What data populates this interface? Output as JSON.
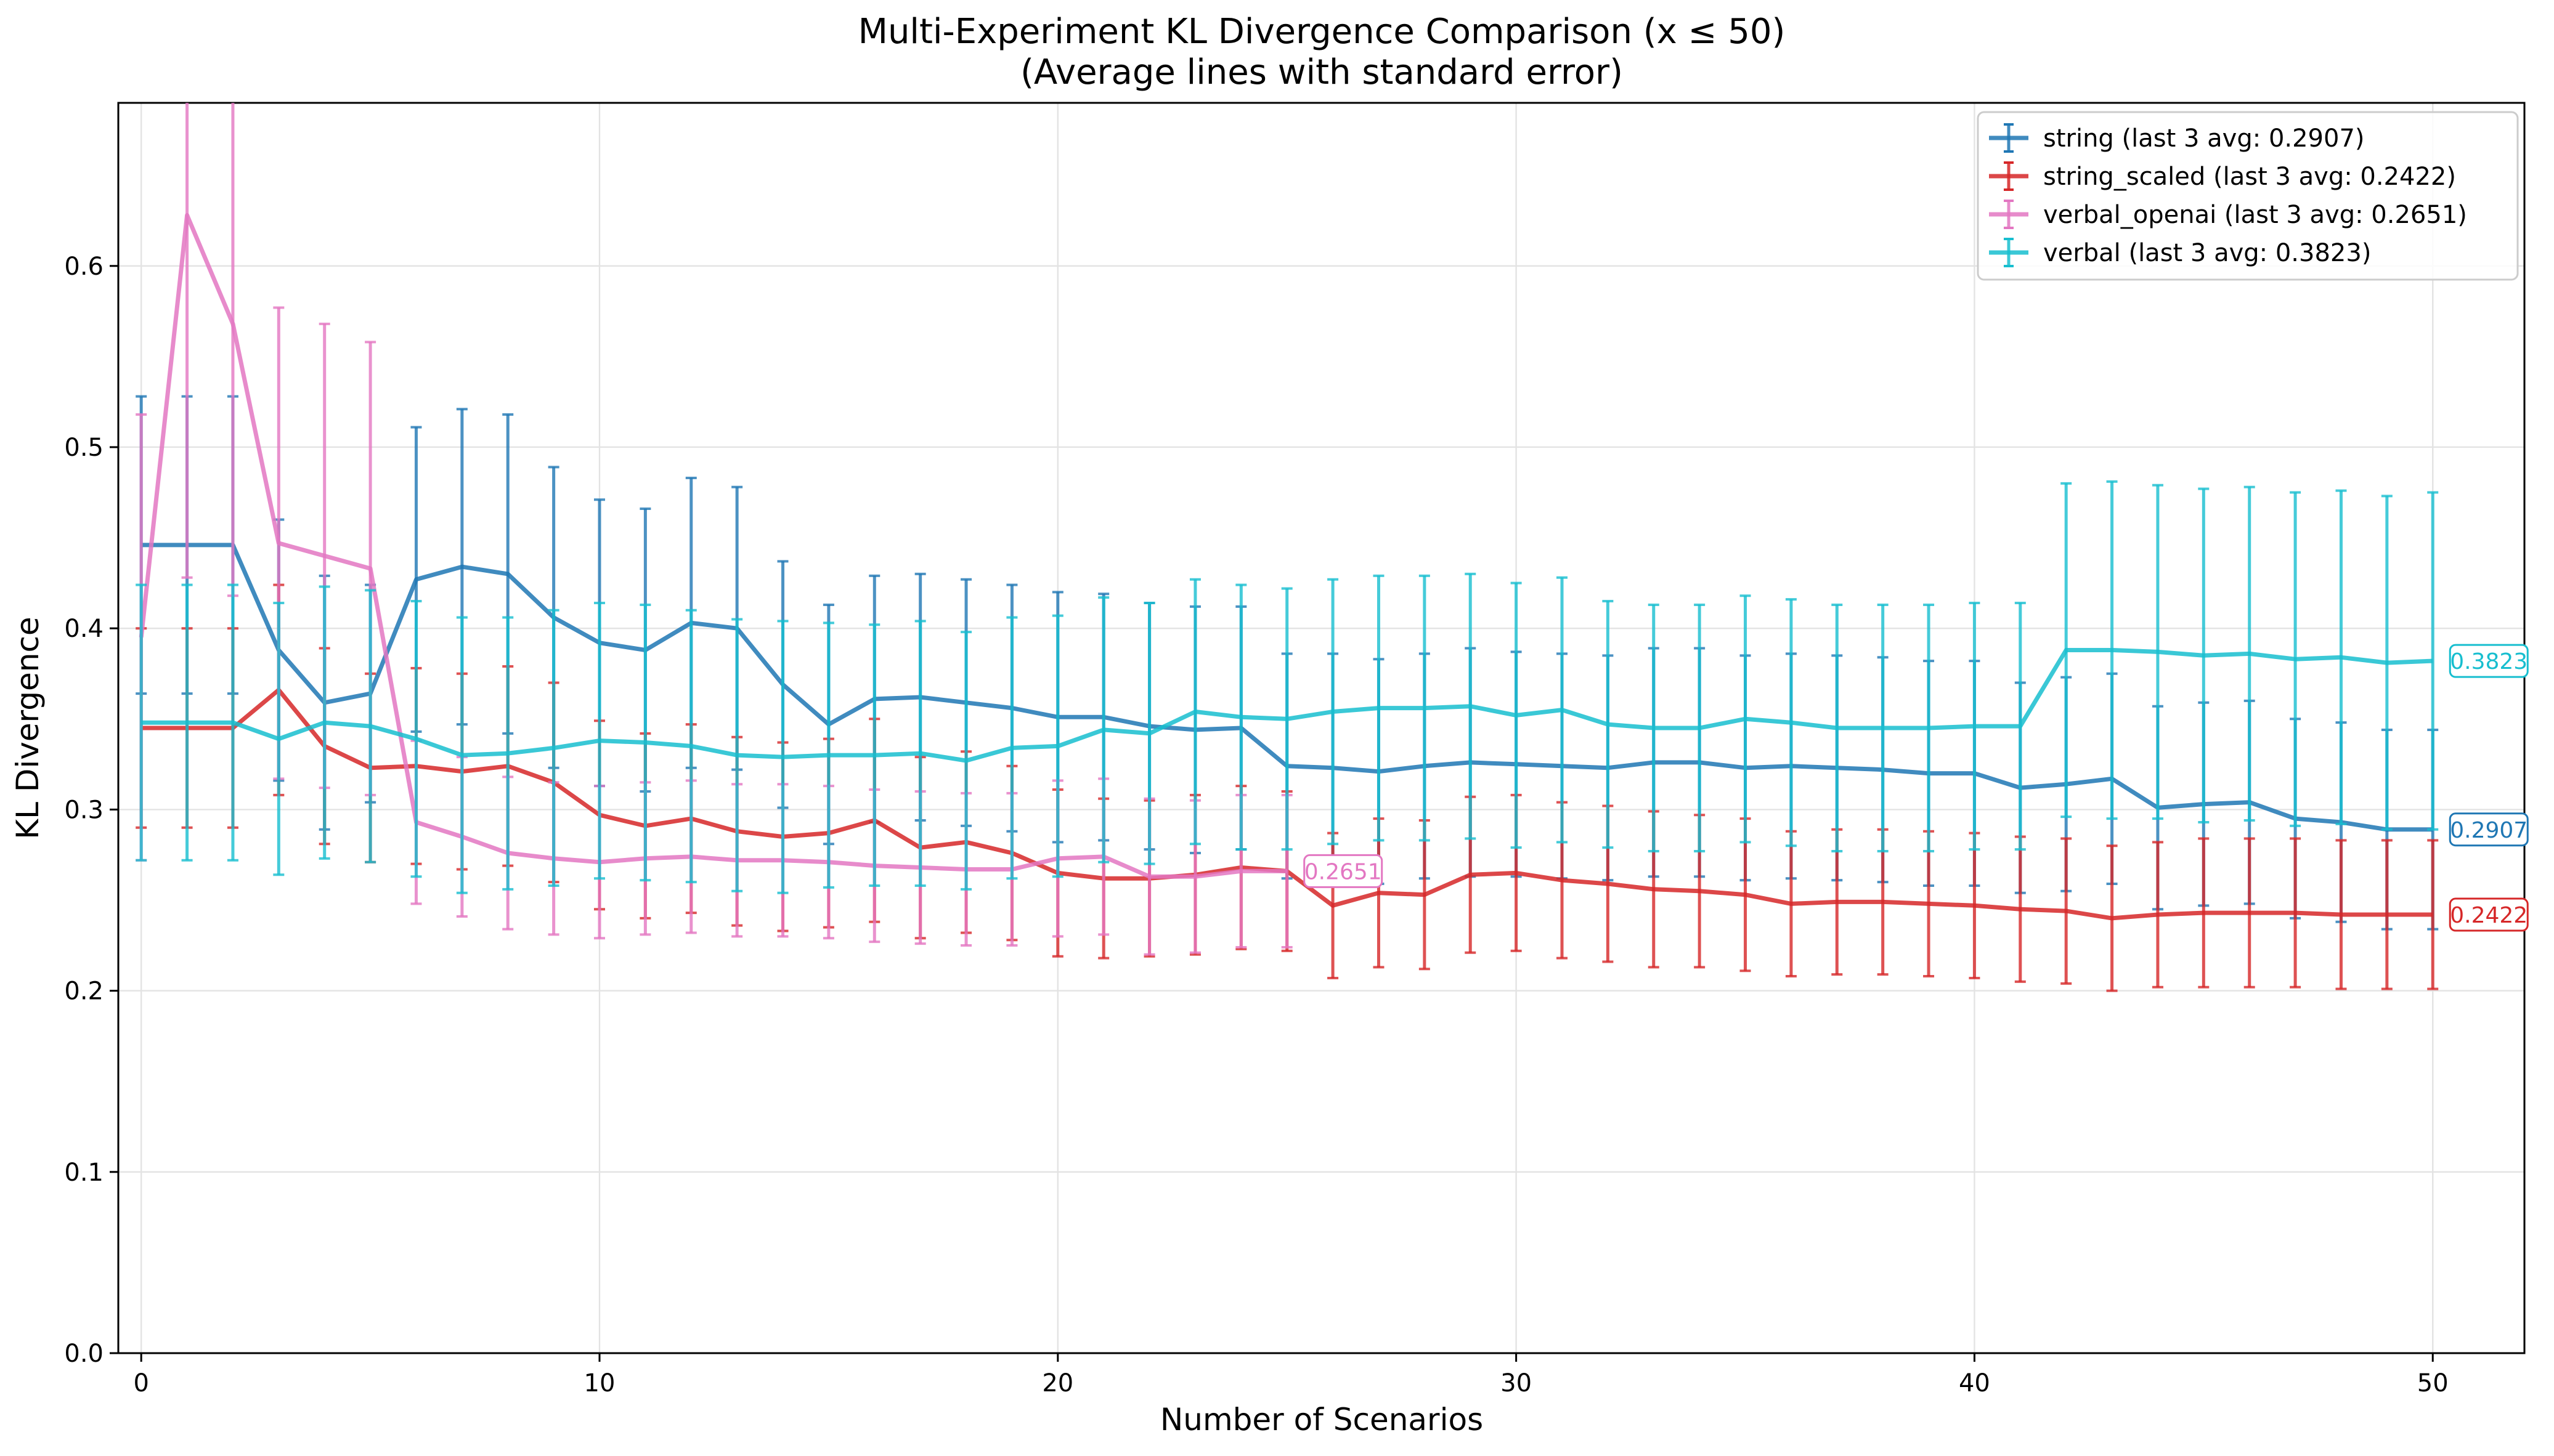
{
  "chart_data": {
    "type": "line",
    "title": "Multi-Experiment KL Divergence Comparison (x ≤ 50)",
    "subtitle": "(Average lines with standard error)",
    "xlabel": "Number of Scenarios",
    "ylabel": "KL Divergence",
    "xlim": [
      -0.5,
      52
    ],
    "ylim": [
      0.0,
      0.69
    ],
    "xticks": [
      0,
      10,
      20,
      30,
      40,
      50
    ],
    "xtick_labels": [
      "0",
      "10",
      "20",
      "30",
      "40",
      "50"
    ],
    "yticks": [
      0.0,
      0.1,
      0.2,
      0.3,
      0.4,
      0.5,
      0.6
    ],
    "ytick_labels": [
      "0.0",
      "0.1",
      "0.2",
      "0.3",
      "0.4",
      "0.5",
      "0.6"
    ],
    "grid": true,
    "legend_position": "top-right",
    "series": [
      {
        "name": "string (last 3 avg: 0.2907)",
        "color": "#1f77b4",
        "end_label": "0.2907",
        "x": [
          0,
          1,
          2,
          3,
          4,
          5,
          6,
          7,
          8,
          9,
          10,
          11,
          12,
          13,
          14,
          15,
          16,
          17,
          18,
          19,
          20,
          21,
          22,
          23,
          24,
          25,
          26,
          27,
          28,
          29,
          30,
          31,
          32,
          33,
          34,
          35,
          36,
          37,
          38,
          39,
          40,
          41,
          42,
          43,
          44,
          45,
          46,
          47,
          48,
          49,
          50
        ],
        "values": [
          0.446,
          0.446,
          0.446,
          0.388,
          0.359,
          0.364,
          0.427,
          0.434,
          0.43,
          0.406,
          0.392,
          0.388,
          0.403,
          0.4,
          0.369,
          0.347,
          0.361,
          0.362,
          0.359,
          0.356,
          0.351,
          0.351,
          0.346,
          0.344,
          0.345,
          0.324,
          0.323,
          0.321,
          0.324,
          0.326,
          0.325,
          0.324,
          0.323,
          0.326,
          0.326,
          0.323,
          0.324,
          0.323,
          0.322,
          0.32,
          0.32,
          0.312,
          0.314,
          0.317,
          0.301,
          0.303,
          0.304,
          0.295,
          0.293,
          0.289,
          0.289
        ],
        "errors": [
          0.082,
          0.082,
          0.082,
          0.072,
          0.07,
          0.06,
          0.084,
          0.087,
          0.088,
          0.083,
          0.079,
          0.078,
          0.08,
          0.078,
          0.068,
          0.066,
          0.068,
          0.068,
          0.068,
          0.068,
          0.069,
          0.068,
          0.068,
          0.068,
          0.067,
          0.062,
          0.063,
          0.062,
          0.062,
          0.063,
          0.062,
          0.062,
          0.062,
          0.063,
          0.063,
          0.062,
          0.062,
          0.062,
          0.062,
          0.062,
          0.062,
          0.058,
          0.059,
          0.058,
          0.056,
          0.056,
          0.056,
          0.055,
          0.055,
          0.055,
          0.055
        ]
      },
      {
        "name": "string_scaled (last 3 avg: 0.2422)",
        "color": "#d62728",
        "end_label": "0.2422",
        "x": [
          0,
          1,
          2,
          3,
          4,
          5,
          6,
          7,
          8,
          9,
          10,
          11,
          12,
          13,
          14,
          15,
          16,
          17,
          18,
          19,
          20,
          21,
          22,
          23,
          24,
          25,
          26,
          27,
          28,
          29,
          30,
          31,
          32,
          33,
          34,
          35,
          36,
          37,
          38,
          39,
          40,
          41,
          42,
          43,
          44,
          45,
          46,
          47,
          48,
          49,
          50
        ],
        "values": [
          0.345,
          0.345,
          0.345,
          0.366,
          0.335,
          0.323,
          0.324,
          0.321,
          0.324,
          0.315,
          0.297,
          0.291,
          0.295,
          0.288,
          0.285,
          0.287,
          0.294,
          0.279,
          0.282,
          0.276,
          0.265,
          0.262,
          0.262,
          0.264,
          0.268,
          0.266,
          0.247,
          0.254,
          0.253,
          0.264,
          0.265,
          0.261,
          0.259,
          0.256,
          0.255,
          0.253,
          0.248,
          0.249,
          0.249,
          0.248,
          0.247,
          0.245,
          0.244,
          0.24,
          0.242,
          0.243,
          0.243,
          0.243,
          0.242,
          0.242,
          0.242
        ],
        "errors": [
          0.055,
          0.055,
          0.055,
          0.058,
          0.054,
          0.052,
          0.054,
          0.054,
          0.055,
          0.055,
          0.052,
          0.051,
          0.052,
          0.052,
          0.052,
          0.052,
          0.056,
          0.05,
          0.05,
          0.048,
          0.046,
          0.044,
          0.043,
          0.044,
          0.045,
          0.044,
          0.04,
          0.041,
          0.041,
          0.043,
          0.043,
          0.043,
          0.043,
          0.043,
          0.042,
          0.042,
          0.04,
          0.04,
          0.04,
          0.04,
          0.04,
          0.04,
          0.04,
          0.04,
          0.04,
          0.041,
          0.041,
          0.041,
          0.041,
          0.041,
          0.041
        ]
      },
      {
        "name": "verbal_openai (last 3 avg: 0.2651)",
        "color": "#e377c2",
        "end_label": "0.2651",
        "x": [
          0,
          1,
          2,
          3,
          4,
          5,
          6,
          7,
          8,
          9,
          10,
          11,
          12,
          13,
          14,
          15,
          16,
          17,
          18,
          19,
          20,
          21,
          22,
          23,
          24,
          25
        ],
        "values": [
          0.395,
          0.628,
          0.568,
          0.447,
          0.44,
          0.433,
          0.293,
          0.285,
          0.276,
          0.273,
          0.271,
          0.273,
          0.274,
          0.272,
          0.272,
          0.271,
          0.269,
          0.268,
          0.267,
          0.267,
          0.273,
          0.274,
          0.263,
          0.263,
          0.266,
          0.266
        ],
        "errors": [
          0.123,
          0.2,
          0.15,
          0.13,
          0.128,
          0.125,
          0.045,
          0.044,
          0.042,
          0.042,
          0.042,
          0.042,
          0.042,
          0.042,
          0.042,
          0.042,
          0.042,
          0.042,
          0.042,
          0.042,
          0.043,
          0.043,
          0.043,
          0.042,
          0.042,
          0.042
        ]
      },
      {
        "name": "verbal (last 3 avg: 0.3823)",
        "color": "#17becf",
        "end_label": "0.3823",
        "x": [
          0,
          1,
          2,
          3,
          4,
          5,
          6,
          7,
          8,
          9,
          10,
          11,
          12,
          13,
          14,
          15,
          16,
          17,
          18,
          19,
          20,
          21,
          22,
          23,
          24,
          25,
          26,
          27,
          28,
          29,
          30,
          31,
          32,
          33,
          34,
          35,
          36,
          37,
          38,
          39,
          40,
          41,
          42,
          43,
          44,
          45,
          46,
          47,
          48,
          49,
          50
        ],
        "values": [
          0.348,
          0.348,
          0.348,
          0.339,
          0.348,
          0.346,
          0.339,
          0.33,
          0.331,
          0.334,
          0.338,
          0.337,
          0.335,
          0.33,
          0.329,
          0.33,
          0.33,
          0.331,
          0.327,
          0.334,
          0.335,
          0.344,
          0.342,
          0.354,
          0.351,
          0.35,
          0.354,
          0.356,
          0.356,
          0.357,
          0.352,
          0.355,
          0.347,
          0.345,
          0.345,
          0.35,
          0.348,
          0.345,
          0.345,
          0.345,
          0.346,
          0.346,
          0.388,
          0.388,
          0.387,
          0.385,
          0.386,
          0.383,
          0.384,
          0.381,
          0.382
        ],
        "errors": [
          0.076,
          0.076,
          0.076,
          0.075,
          0.075,
          0.075,
          0.076,
          0.076,
          0.075,
          0.076,
          0.076,
          0.076,
          0.075,
          0.075,
          0.075,
          0.073,
          0.072,
          0.073,
          0.071,
          0.072,
          0.072,
          0.073,
          0.072,
          0.073,
          0.073,
          0.072,
          0.073,
          0.073,
          0.073,
          0.073,
          0.073,
          0.073,
          0.068,
          0.068,
          0.068,
          0.068,
          0.068,
          0.068,
          0.068,
          0.068,
          0.068,
          0.068,
          0.092,
          0.093,
          0.092,
          0.092,
          0.092,
          0.092,
          0.092,
          0.092,
          0.093
        ]
      }
    ]
  }
}
